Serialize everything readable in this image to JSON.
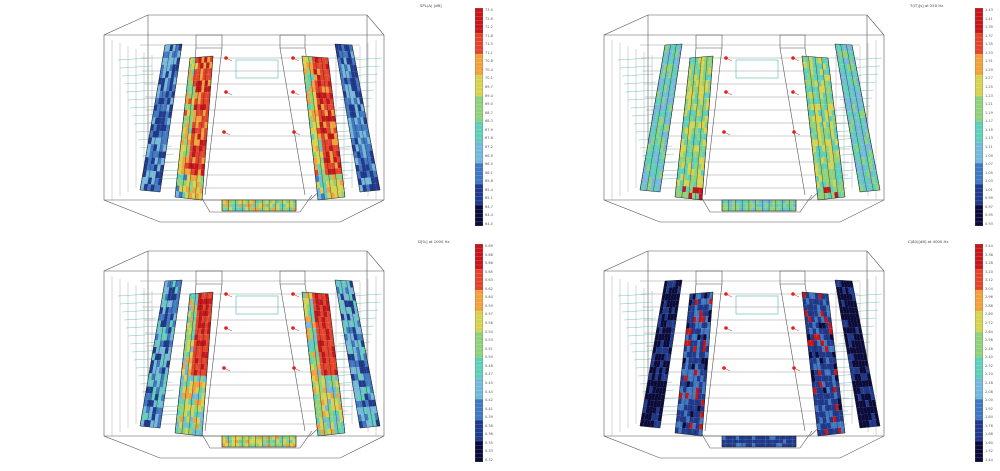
{
  "colors": {
    "wire": "#555555",
    "wire_light": "#9a9a9a",
    "grid": "#4fb8b0",
    "source": "#e0201b",
    "scale": [
      "#0a0a3c",
      "#1f3a8f",
      "#3f78c4",
      "#74b8dc",
      "#5fd0b8",
      "#8fd27a",
      "#d6d34f",
      "#f3a13a",
      "#e5432a",
      "#c8151a"
    ]
  },
  "panels": [
    {
      "id": "spl",
      "title": "SPL(A) [dB]",
      "title_right": "— 73.0",
      "ticks": [
        "73.0",
        "72.6",
        "72.2",
        "71.8",
        "71.5",
        "71.1",
        "70.8",
        "70.4",
        "70.1",
        "69.7",
        "69.4",
        "69.0",
        "68.7",
        "68.3",
        "67.9",
        "67.6",
        "67.2",
        "66.9",
        "66.5",
        "66.1",
        "65.8",
        "65.4",
        "65.1",
        "64.7",
        "64.4",
        "64.0"
      ],
      "bottom_tick": "— 64.0",
      "pattern": "spl"
    },
    {
      "id": "t30",
      "title": "T(IT)[s]   at 250 Hz",
      "title_right": "1.43",
      "ticks": [
        "1.43",
        "1.41",
        "1.39",
        "1.37",
        "1.35",
        "1.33",
        "1.31",
        "1.29",
        "1.27",
        "1.25",
        "1.23",
        "1.21",
        "1.19",
        "1.17",
        "1.15",
        "1.13",
        "1.11",
        "1.09",
        "1.07",
        "1.05",
        "1.03",
        "1.01",
        "0.99",
        "0.97",
        "0.95",
        "0.93"
      ],
      "bottom_tick": "0.93",
      "pattern": "t30"
    },
    {
      "id": "d50",
      "title": "D[%]   at 1000 Hz",
      "title_right": "0.69",
      "ticks": [
        "0.69",
        "0.68",
        "0.66",
        "0.65",
        "0.63",
        "0.62",
        "0.60",
        "0.59",
        "0.57",
        "0.56",
        "0.54",
        "0.53",
        "0.51",
        "0.50",
        "0.48",
        "0.47",
        "0.45",
        "0.44",
        "0.42",
        "0.41",
        "0.39",
        "0.38",
        "0.36",
        "0.35",
        "0.33",
        "0.32"
      ],
      "bottom_tick": "0.32",
      "pattern": "d50"
    },
    {
      "id": "c80",
      "title": "C(80)[dB]   at 4000 Hz",
      "title_right": "3.44",
      "ticks": [
        "3.44",
        "3.36",
        "3.28",
        "3.20",
        "3.12",
        "3.04",
        "2.96",
        "2.88",
        "2.80",
        "2.72",
        "2.64",
        "2.56",
        "2.48",
        "2.40",
        "2.32",
        "2.24",
        "2.16",
        "2.08",
        "2.00",
        "1.92",
        "1.84",
        "1.76",
        "1.68",
        "1.60",
        "1.52",
        "1.44"
      ],
      "bottom_tick": "1.44",
      "pattern": "c80"
    }
  ]
}
